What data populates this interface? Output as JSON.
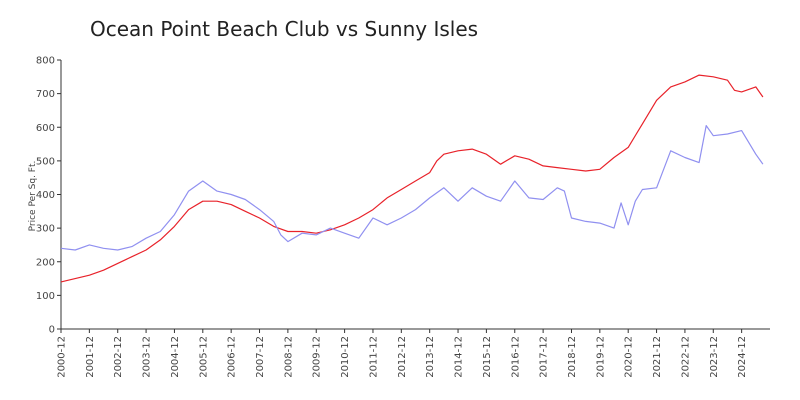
{
  "chart_data": {
    "type": "line",
    "title": "Ocean Point Beach Club vs Sunny Isles",
    "xlabel": "",
    "ylabel": "Price Per Sq. Ft.",
    "ylim": [
      0,
      800
    ],
    "yticks": [
      0,
      100,
      200,
      300,
      400,
      500,
      600,
      700,
      800
    ],
    "xlim": [
      "2000-12",
      "2025-12"
    ],
    "xticks": [
      "2000-12",
      "2001-12",
      "2002-12",
      "2003-12",
      "2004-12",
      "2005-12",
      "2006-12",
      "2007-12",
      "2008-12",
      "2009-12",
      "2010-12",
      "2011-12",
      "2012-12",
      "2013-12",
      "2014-12",
      "2015-12",
      "2016-12",
      "2017-12",
      "2018-12",
      "2019-12",
      "2020-12",
      "2021-12",
      "2022-12",
      "2023-12",
      "2024-12"
    ],
    "grid": false,
    "series": [
      {
        "color": "#e8222a",
        "points": [
          [
            "2000-12",
            140
          ],
          [
            "2001-06",
            150
          ],
          [
            "2001-12",
            160
          ],
          [
            "2002-06",
            175
          ],
          [
            "2002-12",
            195
          ],
          [
            "2003-06",
            215
          ],
          [
            "2003-12",
            235
          ],
          [
            "2004-06",
            265
          ],
          [
            "2004-12",
            305
          ],
          [
            "2005-06",
            355
          ],
          [
            "2005-12",
            380
          ],
          [
            "2006-06",
            380
          ],
          [
            "2006-12",
            370
          ],
          [
            "2007-06",
            350
          ],
          [
            "2007-12",
            330
          ],
          [
            "2008-06",
            305
          ],
          [
            "2008-12",
            290
          ],
          [
            "2009-06",
            290
          ],
          [
            "2009-12",
            285
          ],
          [
            "2010-06",
            295
          ],
          [
            "2010-12",
            310
          ],
          [
            "2011-06",
            330
          ],
          [
            "2011-12",
            355
          ],
          [
            "2012-06",
            390
          ],
          [
            "2012-12",
            415
          ],
          [
            "2013-06",
            440
          ],
          [
            "2013-12",
            465
          ],
          [
            "2014-03",
            500
          ],
          [
            "2014-06",
            520
          ],
          [
            "2014-12",
            530
          ],
          [
            "2015-06",
            535
          ],
          [
            "2015-12",
            520
          ],
          [
            "2016-06",
            490
          ],
          [
            "2016-12",
            515
          ],
          [
            "2017-06",
            505
          ],
          [
            "2017-12",
            485
          ],
          [
            "2018-06",
            480
          ],
          [
            "2018-12",
            475
          ],
          [
            "2019-06",
            470
          ],
          [
            "2019-12",
            475
          ],
          [
            "2020-06",
            510
          ],
          [
            "2020-12",
            540
          ],
          [
            "2021-06",
            610
          ],
          [
            "2021-12",
            680
          ],
          [
            "2022-06",
            720
          ],
          [
            "2022-12",
            735
          ],
          [
            "2023-06",
            755
          ],
          [
            "2023-12",
            750
          ],
          [
            "2024-06",
            740
          ],
          [
            "2024-09",
            710
          ],
          [
            "2024-12",
            705
          ],
          [
            "2025-06",
            720
          ],
          [
            "2025-09",
            690
          ]
        ]
      },
      {
        "color": "#9090f0",
        "points": [
          [
            "2000-12",
            240
          ],
          [
            "2001-06",
            235
          ],
          [
            "2001-12",
            250
          ],
          [
            "2002-06",
            240
          ],
          [
            "2002-12",
            235
          ],
          [
            "2003-06",
            245
          ],
          [
            "2003-12",
            270
          ],
          [
            "2004-06",
            290
          ],
          [
            "2004-12",
            340
          ],
          [
            "2005-06",
            410
          ],
          [
            "2005-12",
            440
          ],
          [
            "2006-06",
            410
          ],
          [
            "2006-12",
            400
          ],
          [
            "2007-06",
            385
          ],
          [
            "2007-12",
            355
          ],
          [
            "2008-06",
            320
          ],
          [
            "2008-09",
            280
          ],
          [
            "2008-12",
            260
          ],
          [
            "2009-06",
            285
          ],
          [
            "2009-12",
            280
          ],
          [
            "2010-06",
            300
          ],
          [
            "2010-12",
            285
          ],
          [
            "2011-06",
            270
          ],
          [
            "2011-12",
            330
          ],
          [
            "2012-06",
            310
          ],
          [
            "2012-12",
            330
          ],
          [
            "2013-06",
            355
          ],
          [
            "2013-12",
            390
          ],
          [
            "2014-06",
            420
          ],
          [
            "2014-12",
            380
          ],
          [
            "2015-06",
            420
          ],
          [
            "2015-12",
            395
          ],
          [
            "2016-06",
            380
          ],
          [
            "2016-12",
            440
          ],
          [
            "2017-06",
            390
          ],
          [
            "2017-12",
            385
          ],
          [
            "2018-06",
            420
          ],
          [
            "2018-09",
            410
          ],
          [
            "2018-12",
            330
          ],
          [
            "2019-06",
            320
          ],
          [
            "2019-12",
            315
          ],
          [
            "2020-06",
            300
          ],
          [
            "2020-09",
            375
          ],
          [
            "2020-12",
            310
          ],
          [
            "2021-03",
            380
          ],
          [
            "2021-06",
            415
          ],
          [
            "2021-12",
            420
          ],
          [
            "2022-06",
            530
          ],
          [
            "2022-12",
            510
          ],
          [
            "2023-06",
            495
          ],
          [
            "2023-09",
            605
          ],
          [
            "2023-12",
            575
          ],
          [
            "2024-06",
            580
          ],
          [
            "2024-12",
            590
          ],
          [
            "2025-06",
            520
          ],
          [
            "2025-09",
            490
          ]
        ]
      }
    ]
  }
}
